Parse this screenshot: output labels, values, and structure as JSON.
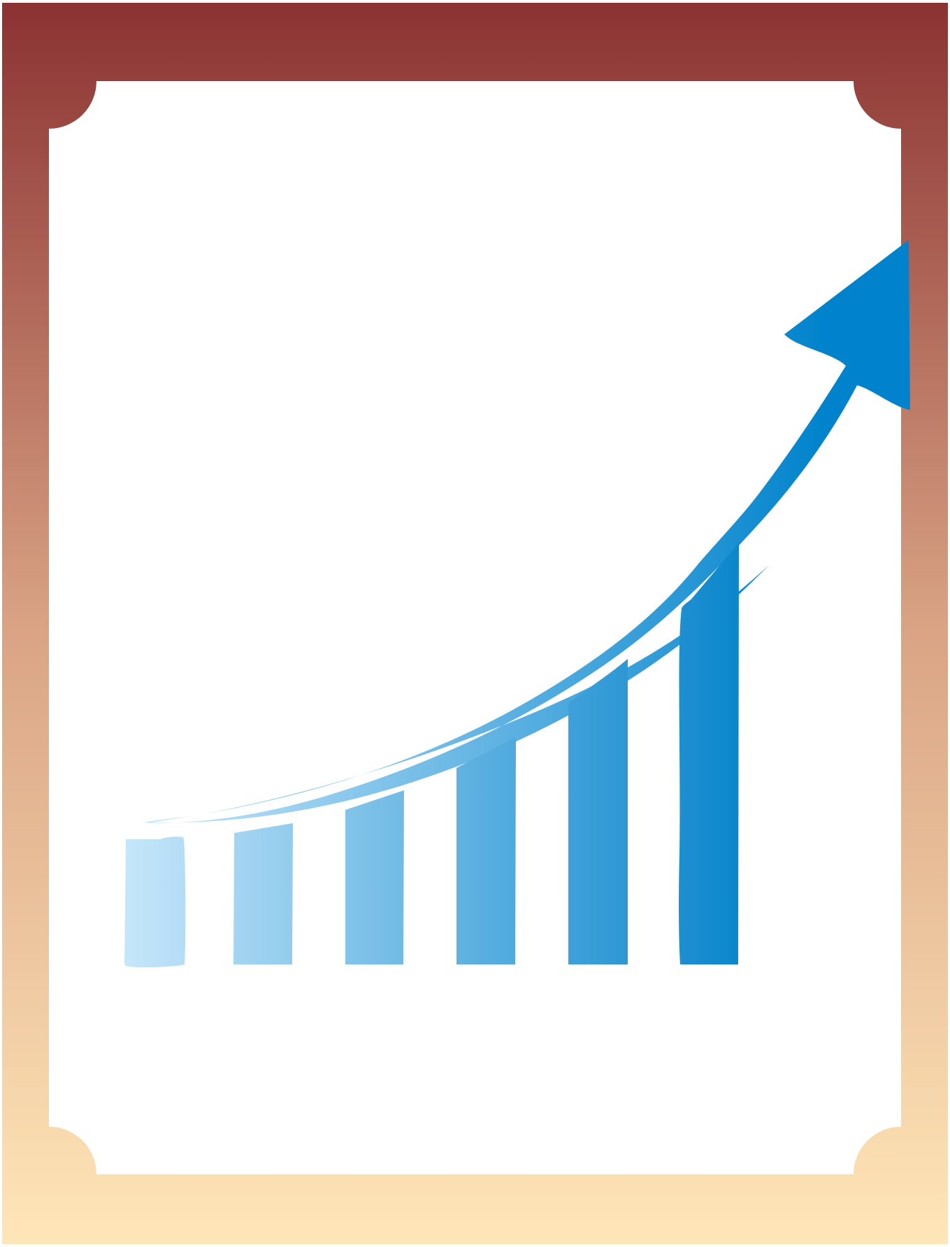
{
  "illustration": {
    "subject": "growth-chart-icon",
    "frame_gradient": {
      "top": "#8B3232",
      "middle": "#D9A384",
      "bottom": "#FFE6B8"
    },
    "bar_gradient": {
      "start": "#C6E6FA",
      "end": "#0B86CC"
    },
    "arrow_gradient": {
      "start": "#C6E6FA",
      "end": "#0083CC"
    },
    "bars": [
      {
        "level": 0.31
      },
      {
        "level": 0.34
      },
      {
        "level": 0.42
      },
      {
        "level": 0.55
      },
      {
        "level": 0.73
      },
      {
        "level": 1.0
      }
    ]
  }
}
